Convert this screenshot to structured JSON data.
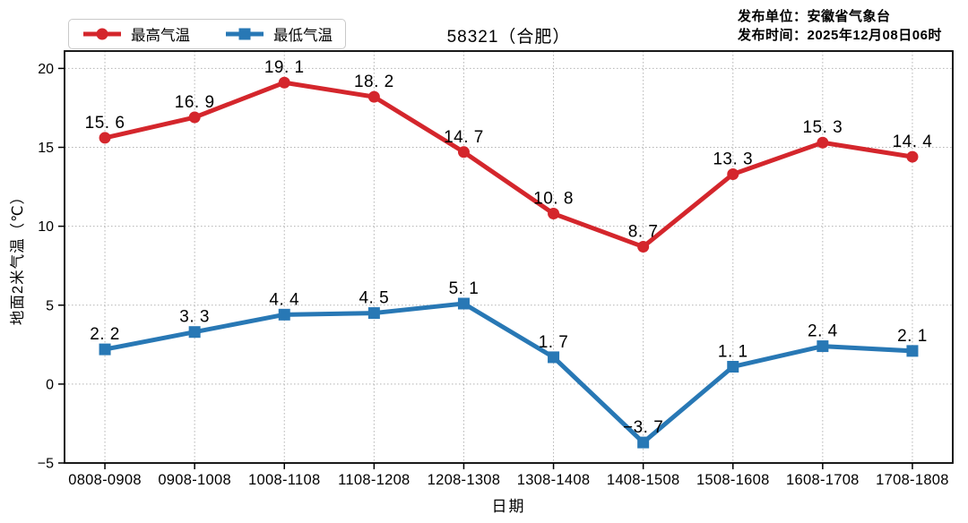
{
  "publisher": {
    "line1": "发布单位：安徽省气象台",
    "line2": "发布时间：2025年12月08日06时"
  },
  "chart_data": {
    "type": "line",
    "title": "58321（合肥）",
    "xlabel": "日期",
    "ylabel": "地面2米气温（℃）",
    "categories": [
      "0808-0908",
      "0908-1008",
      "1008-1108",
      "1108-1208",
      "1208-1308",
      "1308-1408",
      "1408-1508",
      "1508-1608",
      "1608-1708",
      "1708-1808"
    ],
    "series": [
      {
        "name": "最高气温",
        "color": "#d4262c",
        "marker": "circle",
        "values": [
          15.6,
          16.9,
          19.1,
          18.2,
          14.7,
          10.8,
          8.7,
          13.3,
          15.3,
          14.4
        ]
      },
      {
        "name": "最低气温",
        "color": "#2878b5",
        "marker": "square",
        "values": [
          2.2,
          3.3,
          4.4,
          4.5,
          5.1,
          1.7,
          -3.7,
          1.1,
          2.4,
          2.1
        ]
      }
    ],
    "yticks": [
      -5,
      0,
      5,
      10,
      15,
      20
    ],
    "ylim": [
      -5,
      21.1
    ],
    "grid": true,
    "grid_style": "dotted",
    "legend_position": "top-left",
    "data_labels": true
  }
}
